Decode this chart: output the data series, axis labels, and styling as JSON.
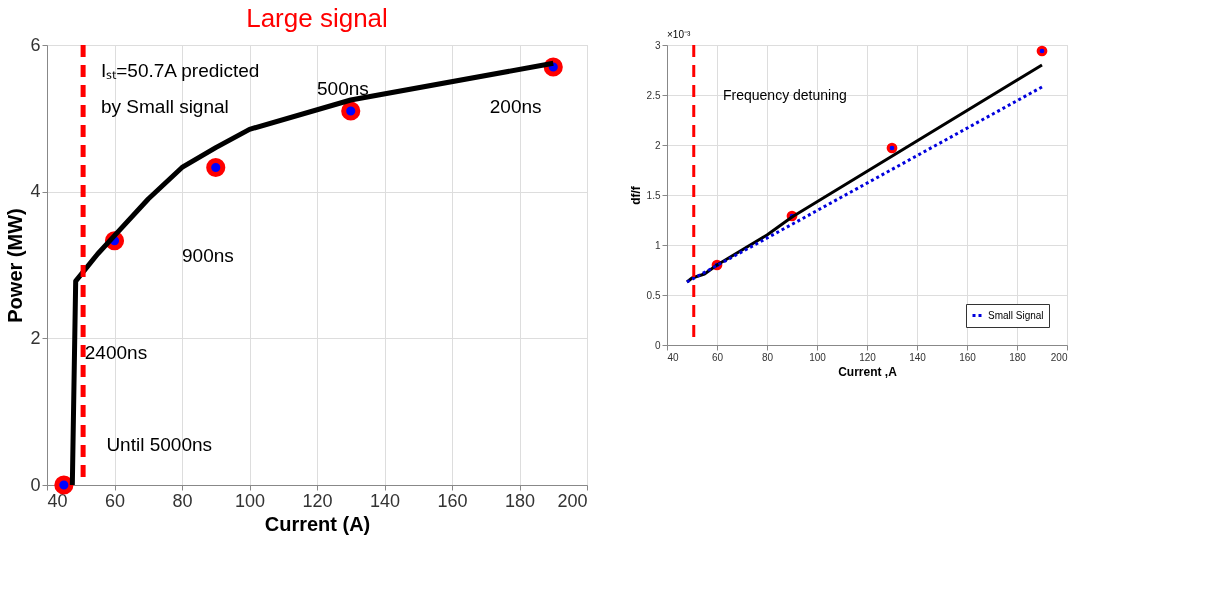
{
  "chart_data": [
    {
      "type": "line",
      "title": "Large signal",
      "xlabel": "Current (A)",
      "ylabel": "Power (MW)",
      "xlim": [
        40,
        200
      ],
      "xticks": [
        40,
        60,
        80,
        100,
        120,
        140,
        160,
        180,
        200
      ],
      "ylim": [
        0,
        6
      ],
      "yticks": [
        0,
        2,
        4,
        6
      ],
      "grid": true,
      "legend": false,
      "series": [
        {
          "color": "#000000",
          "x": [
            47.5,
            48.5,
            55,
            60,
            70,
            80,
            90,
            100,
            130,
            190
          ],
          "values": [
            0,
            2.78,
            3.15,
            3.4,
            3.9,
            4.33,
            4.6,
            4.85,
            5.25,
            5.75
          ]
        },
        {
          "type": "scatter",
          "color": "#ff0000",
          "x": [
            45,
            60,
            90,
            130,
            190
          ],
          "values": [
            0,
            3.33,
            4.33,
            5.1,
            5.7
          ]
        }
      ],
      "ref_lines": [
        {
          "axis": "x",
          "value": 50.7,
          "color": "#ff0000",
          "line_style": "dashed"
        }
      ],
      "annotations": [
        "Iₛₜ=50.7A predicted",
        "by Small signal",
        "500ns",
        "200ns",
        "900ns",
        "2400ns",
        "Until 5000ns"
      ]
    },
    {
      "type": "line",
      "xlabel": "Current ,A",
      "ylabel": "df/f",
      "xlim": [
        40,
        200
      ],
      "xticks": [
        40,
        60,
        80,
        100,
        120,
        140,
        160,
        180,
        200
      ],
      "ylim": [
        0,
        3
      ],
      "yticks": [
        0,
        0.5,
        1,
        1.5,
        2,
        2.5,
        3
      ],
      "grid": true,
      "legend": "bottom right",
      "series": [
        {
          "color": "#000000",
          "x": [
            48,
            50,
            55,
            60,
            80,
            90,
            190
          ],
          "values": [
            0.63,
            0.67,
            0.71,
            0.8,
            1.1,
            1.28,
            2.8
          ]
        },
        {
          "type": "scatter",
          "color": "#ff0000",
          "x": [
            60,
            90,
            130,
            190
          ],
          "values": [
            0.8,
            1.29,
            1.97,
            2.94
          ]
        },
        {
          "name": "Small Signal",
          "color": "#0000dd",
          "line_style": "dotted",
          "x": [
            48,
            190
          ],
          "values": [
            0.63,
            2.58
          ]
        }
      ],
      "ref_lines": [
        {
          "axis": "x",
          "value": 50.7,
          "color": "#ff0000",
          "line_style": "dashed"
        }
      ],
      "annotations": [
        "×10⁻³",
        "Frequency detuning"
      ]
    }
  ]
}
